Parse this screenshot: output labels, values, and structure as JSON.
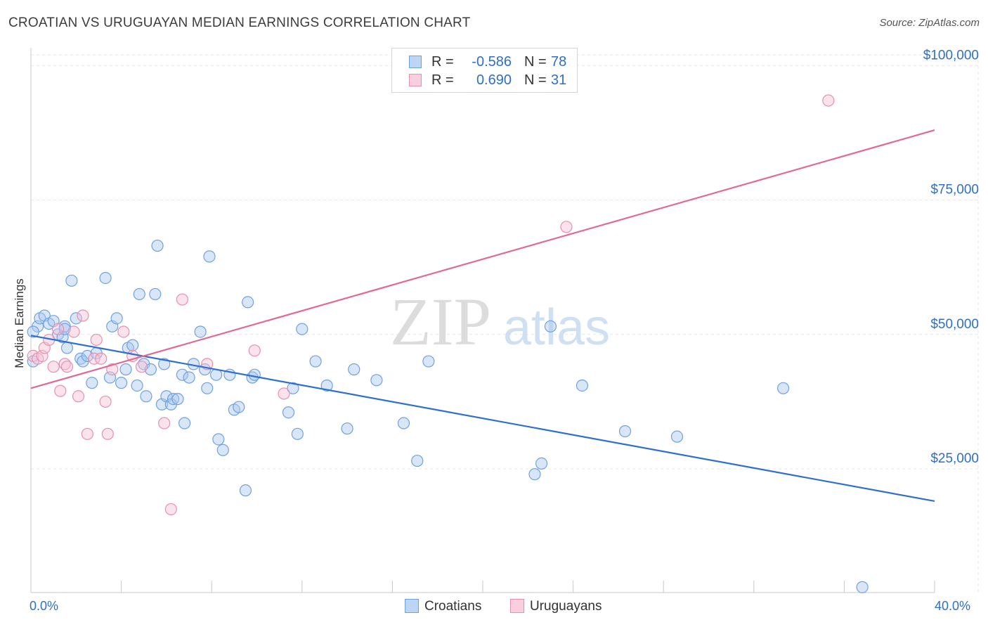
{
  "header": {
    "title": "CROATIAN VS URUGUAYAN MEDIAN EARNINGS CORRELATION CHART",
    "source": "Source: ZipAtlas.com"
  },
  "legend": {
    "r_label": "R =",
    "n_label": "N =",
    "rows": [
      {
        "r": "-0.586",
        "n": "78"
      },
      {
        "r": "0.690",
        "n": "31"
      }
    ]
  },
  "watermark": {
    "zip": "ZIP",
    "atlas": "atlas"
  },
  "chart_data": {
    "type": "scatter",
    "title": "CROATIAN VS URUGUAYAN MEDIAN EARNINGS CORRELATION CHART",
    "ylabel": "Median Earnings",
    "xlim": [
      0,
      40
    ],
    "ylim": [
      2000,
      102000
    ],
    "x_tick_labels": [
      "0.0%",
      "40.0%"
    ],
    "y_ticks": [
      {
        "value": 25000,
        "label": "$25,000"
      },
      {
        "value": 50000,
        "label": "$50,000"
      },
      {
        "value": 75000,
        "label": "$75,000"
      },
      {
        "value": 100000,
        "label": "$100,000"
      }
    ],
    "grid": true,
    "legend_position": "bottom",
    "series": [
      {
        "name": "Croatians",
        "color": "#6fa1e2",
        "fill": "#a9c8f0",
        "trend": {
          "x": [
            0,
            40
          ],
          "y": [
            49800,
            19000
          ],
          "color": "#2d6fd0"
        },
        "points": [
          [
            0.1,
            45000
          ],
          [
            0.3,
            51500
          ],
          [
            0.4,
            53000
          ],
          [
            0.6,
            53500
          ],
          [
            0.8,
            52000
          ],
          [
            1.0,
            52500
          ],
          [
            1.2,
            50000
          ],
          [
            1.4,
            49500
          ],
          [
            1.5,
            51500
          ],
          [
            1.6,
            47500
          ],
          [
            1.8,
            60000
          ],
          [
            2.0,
            53000
          ],
          [
            2.2,
            45500
          ],
          [
            2.3,
            45000
          ],
          [
            2.5,
            46000
          ],
          [
            2.7,
            41000
          ],
          [
            2.9,
            46500
          ],
          [
            3.3,
            60500
          ],
          [
            3.5,
            42000
          ],
          [
            3.6,
            51500
          ],
          [
            3.8,
            53000
          ],
          [
            4.0,
            41000
          ],
          [
            4.2,
            43500
          ],
          [
            4.3,
            47500
          ],
          [
            4.5,
            48000
          ],
          [
            4.7,
            40500
          ],
          [
            4.8,
            57500
          ],
          [
            5.0,
            44500
          ],
          [
            5.1,
            38500
          ],
          [
            5.3,
            43500
          ],
          [
            5.5,
            57500
          ],
          [
            5.6,
            66500
          ],
          [
            5.8,
            37000
          ],
          [
            5.9,
            44500
          ],
          [
            6.0,
            38500
          ],
          [
            6.2,
            37000
          ],
          [
            6.3,
            38000
          ],
          [
            6.5,
            38000
          ],
          [
            6.7,
            42500
          ],
          [
            6.8,
            33500
          ],
          [
            7.0,
            42000
          ],
          [
            7.2,
            44500
          ],
          [
            7.5,
            50500
          ],
          [
            7.7,
            43500
          ],
          [
            7.8,
            40000
          ],
          [
            7.9,
            64500
          ],
          [
            8.2,
            42500
          ],
          [
            8.3,
            30500
          ],
          [
            8.5,
            28500
          ],
          [
            8.8,
            42500
          ],
          [
            9.0,
            36000
          ],
          [
            9.2,
            36500
          ],
          [
            9.5,
            21000
          ],
          [
            9.6,
            56000
          ],
          [
            9.8,
            42000
          ],
          [
            9.9,
            42500
          ],
          [
            11.4,
            35500
          ],
          [
            11.6,
            40000
          ],
          [
            11.8,
            31500
          ],
          [
            12.0,
            51000
          ],
          [
            12.6,
            45000
          ],
          [
            13.1,
            40500
          ],
          [
            14.0,
            32500
          ],
          [
            14.3,
            43500
          ],
          [
            15.3,
            41500
          ],
          [
            16.5,
            33500
          ],
          [
            17.1,
            26500
          ],
          [
            17.6,
            45000
          ],
          [
            22.3,
            24000
          ],
          [
            22.6,
            26000
          ],
          [
            23.0,
            51500
          ],
          [
            24.4,
            40500
          ],
          [
            26.3,
            32000
          ],
          [
            28.6,
            31000
          ],
          [
            33.3,
            40000
          ],
          [
            36.8,
            3000
          ],
          [
            0.1,
            50500
          ],
          [
            1.5,
            51000
          ]
        ]
      },
      {
        "name": "Uruguayans",
        "color": "#e88fae",
        "fill": "#f7c2d4",
        "trend": {
          "x": [
            0,
            40
          ],
          "y": [
            40000,
            88000
          ],
          "color": "#e06a96"
        },
        "points": [
          [
            0.1,
            46000
          ],
          [
            0.3,
            45500
          ],
          [
            0.5,
            46000
          ],
          [
            0.6,
            47500
          ],
          [
            0.8,
            49000
          ],
          [
            1.0,
            44000
          ],
          [
            1.2,
            51000
          ],
          [
            1.3,
            39500
          ],
          [
            1.5,
            44500
          ],
          [
            1.6,
            44000
          ],
          [
            1.9,
            50500
          ],
          [
            2.1,
            38500
          ],
          [
            2.3,
            53500
          ],
          [
            2.5,
            31500
          ],
          [
            2.8,
            45500
          ],
          [
            2.9,
            49000
          ],
          [
            3.1,
            45500
          ],
          [
            3.3,
            37500
          ],
          [
            3.4,
            31500
          ],
          [
            3.6,
            43500
          ],
          [
            4.1,
            50500
          ],
          [
            4.5,
            46000
          ],
          [
            4.9,
            44000
          ],
          [
            5.9,
            33500
          ],
          [
            6.2,
            17500
          ],
          [
            6.7,
            56500
          ],
          [
            7.8,
            44500
          ],
          [
            9.9,
            47000
          ],
          [
            11.2,
            39000
          ],
          [
            23.7,
            70000
          ],
          [
            35.3,
            93500
          ]
        ]
      }
    ]
  }
}
